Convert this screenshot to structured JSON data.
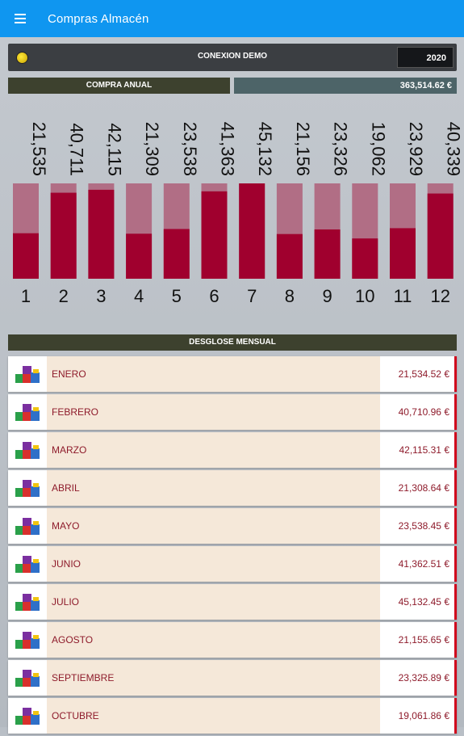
{
  "app": {
    "title": "Compras Almacén",
    "menu_icon": "hamburger-icon"
  },
  "connection": {
    "label": "CONEXION DEMO",
    "year": "2020",
    "status_color": "#f5d300"
  },
  "annual": {
    "label": "COMPRA ANUAL",
    "total": "363,514.62 €"
  },
  "chart_data": {
    "type": "bar",
    "categories": [
      "1",
      "2",
      "3",
      "4",
      "5",
      "6",
      "7",
      "8",
      "9",
      "10",
      "11",
      "12"
    ],
    "values": [
      21535,
      40711,
      42115,
      21309,
      23538,
      41363,
      45132,
      21156,
      23326,
      19062,
      23929,
      40339
    ],
    "value_labels": [
      "21,535",
      "40,711",
      "42,115",
      "21,309",
      "23,538",
      "41,363",
      "45,132",
      "21,156",
      "23,326",
      "19,062",
      "23,929",
      "40,339"
    ],
    "ylim": [
      0,
      45132
    ],
    "colors": {
      "bar": "#a0002e",
      "track": "#b16e85"
    }
  },
  "breakdown": {
    "title": "DESGLOSE MENSUAL",
    "rows": [
      {
        "month": "ENERO",
        "amount": "21,534.52 €"
      },
      {
        "month": "FEBRERO",
        "amount": "40,710.96 €"
      },
      {
        "month": "MARZO",
        "amount": "42,115.31 €"
      },
      {
        "month": "ABRIL",
        "amount": "21,308.64 €"
      },
      {
        "month": "MAYO",
        "amount": "23,538.45 €"
      },
      {
        "month": "JUNIO",
        "amount": "41,362.51 €"
      },
      {
        "month": "JULIO",
        "amount": "45,132.45 €"
      },
      {
        "month": "AGOSTO",
        "amount": "21,155.65 €"
      },
      {
        "month": "SEPTIEMBRE",
        "amount": "23,325.89 €"
      },
      {
        "month": "OCTUBRE",
        "amount": "19,061.86 €"
      }
    ]
  }
}
